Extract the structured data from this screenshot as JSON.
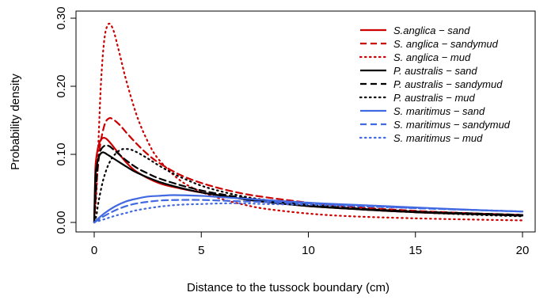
{
  "chart_data": {
    "type": "line",
    "xlabel": "Distance to the tussock boundary (cm)",
    "ylabel": "Probability density",
    "xlim": [
      0,
      20
    ],
    "ylim": [
      0,
      0.3
    ],
    "x_ticks": [
      "0",
      "5",
      "10",
      "15",
      "20"
    ],
    "y_ticks": [
      "0.00",
      "0.10",
      "0.20",
      "0.30"
    ],
    "grid": false,
    "legend_position": "top-right",
    "series": [
      {
        "name": "S.anglica − sand",
        "color": "#cc0000",
        "style": "solid",
        "x": [
          0,
          0.05,
          0.1,
          0.2,
          0.3,
          0.4,
          0.5,
          0.6,
          0.8,
          1,
          1.5,
          2,
          3,
          4,
          5,
          6,
          7,
          8,
          10,
          12,
          15,
          18,
          20
        ],
        "y": [
          0,
          0.075,
          0.095,
          0.113,
          0.121,
          0.124,
          0.124,
          0.122,
          0.115,
          0.107,
          0.088,
          0.074,
          0.058,
          0.05,
          0.044,
          0.039,
          0.034,
          0.03,
          0.024,
          0.02,
          0.015,
          0.012,
          0.01
        ]
      },
      {
        "name": "S. anglica − sandymud",
        "color": "#cc0000",
        "style": "dashed",
        "x": [
          0,
          0.1,
          0.2,
          0.3,
          0.5,
          0.7,
          0.9,
          1.2,
          1.5,
          2,
          2.5,
          3,
          4,
          5,
          6,
          7,
          8,
          10,
          12,
          15,
          18,
          20
        ],
        "y": [
          0,
          0.052,
          0.09,
          0.118,
          0.145,
          0.153,
          0.151,
          0.143,
          0.132,
          0.115,
          0.1,
          0.088,
          0.07,
          0.058,
          0.049,
          0.042,
          0.037,
          0.029,
          0.023,
          0.017,
          0.013,
          0.011
        ]
      },
      {
        "name": "S. anglica − mud",
        "color": "#cc0000",
        "style": "dotted",
        "x": [
          0,
          0.1,
          0.2,
          0.3,
          0.4,
          0.5,
          0.6,
          0.7,
          0.8,
          0.9,
          1,
          1.2,
          1.5,
          2,
          2.5,
          3,
          4,
          5,
          6,
          7,
          8,
          10,
          12,
          15,
          18,
          20
        ],
        "y": [
          0,
          0.04,
          0.12,
          0.195,
          0.245,
          0.275,
          0.288,
          0.292,
          0.289,
          0.282,
          0.271,
          0.246,
          0.208,
          0.156,
          0.119,
          0.093,
          0.062,
          0.045,
          0.034,
          0.026,
          0.02,
          0.013,
          0.009,
          0.006,
          0.004,
          0.003
        ]
      },
      {
        "name": "P. australis − sand",
        "color": "#000000",
        "style": "solid",
        "x": [
          0,
          0.05,
          0.1,
          0.2,
          0.3,
          0.4,
          0.5,
          0.6,
          0.8,
          1,
          1.5,
          2,
          3,
          4,
          5,
          6,
          7,
          8,
          10,
          12,
          15,
          18,
          20
        ],
        "y": [
          0,
          0.062,
          0.08,
          0.095,
          0.101,
          0.103,
          0.102,
          0.1,
          0.096,
          0.092,
          0.082,
          0.073,
          0.06,
          0.051,
          0.044,
          0.039,
          0.034,
          0.03,
          0.024,
          0.02,
          0.015,
          0.012,
          0.01
        ]
      },
      {
        "name": "P. australis − sandymud",
        "color": "#000000",
        "style": "dashed",
        "x": [
          0,
          0.1,
          0.2,
          0.3,
          0.5,
          0.7,
          0.9,
          1.2,
          1.5,
          2,
          2.5,
          3,
          4,
          5,
          6,
          7,
          8,
          10,
          12,
          15,
          18,
          20
        ],
        "y": [
          0,
          0.06,
          0.093,
          0.106,
          0.113,
          0.112,
          0.107,
          0.099,
          0.091,
          0.08,
          0.072,
          0.065,
          0.055,
          0.047,
          0.041,
          0.036,
          0.032,
          0.026,
          0.021,
          0.016,
          0.013,
          0.011
        ]
      },
      {
        "name": "P. australis − mud",
        "color": "#000000",
        "style": "dotted",
        "x": [
          0,
          0.1,
          0.2,
          0.4,
          0.6,
          0.8,
          1,
          1.2,
          1.4,
          1.7,
          2,
          2.5,
          3,
          3.5,
          4,
          5,
          6,
          7,
          8,
          10,
          12,
          15,
          18,
          20
        ],
        "y": [
          0,
          0.01,
          0.03,
          0.06,
          0.08,
          0.093,
          0.101,
          0.106,
          0.108,
          0.107,
          0.103,
          0.094,
          0.084,
          0.075,
          0.067,
          0.054,
          0.045,
          0.038,
          0.033,
          0.025,
          0.02,
          0.015,
          0.011,
          0.009
        ]
      },
      {
        "name": "S. maritimus − sand",
        "color": "#4169e1",
        "style": "solid",
        "x": [
          0,
          0.2,
          0.5,
          1,
          1.5,
          2,
          2.5,
          3,
          3.5,
          4,
          5,
          6,
          7,
          8,
          10,
          12,
          15,
          18,
          20
        ],
        "y": [
          0,
          0.006,
          0.014,
          0.024,
          0.031,
          0.035,
          0.038,
          0.039,
          0.04,
          0.04,
          0.039,
          0.037,
          0.035,
          0.033,
          0.029,
          0.026,
          0.022,
          0.018,
          0.016
        ]
      },
      {
        "name": "S. maritimus − sandymud",
        "color": "#4169e1",
        "style": "dashed",
        "x": [
          0,
          0.2,
          0.5,
          1,
          1.5,
          2,
          3,
          4,
          5,
          6,
          7,
          8,
          10,
          12,
          15,
          18,
          20
        ],
        "y": [
          0,
          0.004,
          0.01,
          0.018,
          0.024,
          0.028,
          0.032,
          0.033,
          0.033,
          0.032,
          0.031,
          0.03,
          0.028,
          0.025,
          0.021,
          0.018,
          0.016
        ]
      },
      {
        "name": "S. maritimus − mud",
        "color": "#4169e1",
        "style": "dotted",
        "x": [
          0,
          0.5,
          1,
          1.5,
          2,
          3,
          4,
          5,
          6,
          7,
          8,
          10,
          12,
          15,
          18,
          20
        ],
        "y": [
          0,
          0.005,
          0.01,
          0.014,
          0.018,
          0.023,
          0.026,
          0.027,
          0.028,
          0.028,
          0.027,
          0.026,
          0.024,
          0.021,
          0.018,
          0.016
        ]
      }
    ]
  }
}
